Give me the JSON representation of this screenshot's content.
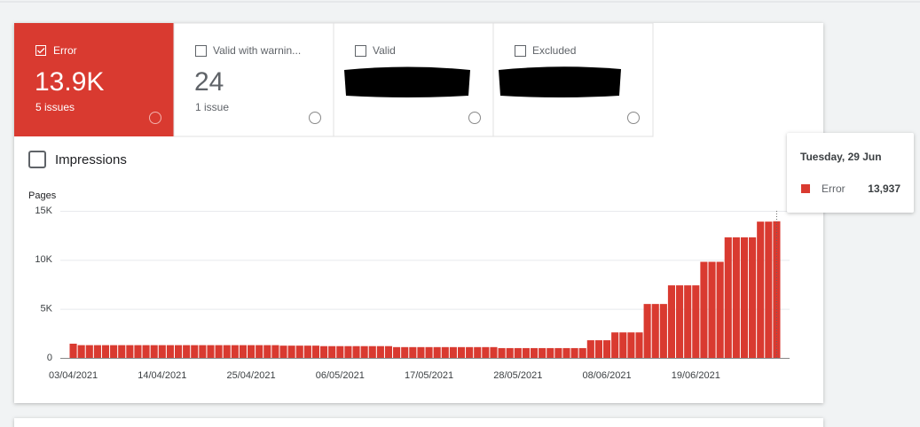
{
  "tabs": [
    {
      "label": "Error",
      "value": "13.9K",
      "sub": "5 issues"
    },
    {
      "label": "Valid with warnin...",
      "value": "24",
      "sub": "1 issue"
    },
    {
      "label": "Valid"
    },
    {
      "label": "Excluded"
    }
  ],
  "impressions": "Impressions",
  "tooltip": {
    "title": "Tuesday, 29 Jun",
    "series": "Error",
    "value": "13,937"
  },
  "chart_data": {
    "type": "bar",
    "y_label": "Pages",
    "color": "#d93a30",
    "grid": true,
    "ylim": [
      0,
      15000
    ],
    "yticks": [
      0,
      {
        "value": 5000,
        "label": "5K"
      },
      {
        "value": 10000,
        "label": "10K"
      },
      {
        "value": 15000,
        "label": "15K"
      }
    ],
    "categories": [
      "03/04/2021",
      null,
      null,
      null,
      null,
      null,
      null,
      null,
      null,
      null,
      null,
      "14/04/2021",
      null,
      null,
      null,
      null,
      null,
      null,
      null,
      null,
      null,
      null,
      "25/04/2021",
      null,
      null,
      null,
      null,
      null,
      null,
      null,
      null,
      null,
      null,
      "06/05/2021",
      null,
      null,
      null,
      null,
      null,
      null,
      null,
      null,
      null,
      null,
      "17/05/2021",
      null,
      null,
      null,
      null,
      null,
      null,
      null,
      null,
      null,
      null,
      "28/05/2021",
      null,
      null,
      null,
      null,
      null,
      null,
      null,
      null,
      null,
      null,
      "08/06/2021",
      null,
      null,
      null,
      null,
      null,
      null,
      null,
      null,
      null,
      null,
      "19/06/2021",
      null,
      null,
      null,
      null,
      null,
      null,
      null,
      null,
      null,
      null
    ],
    "values": [
      1450,
      1300,
      1300,
      1300,
      1300,
      1300,
      1300,
      1300,
      1300,
      1300,
      1300,
      1300,
      1300,
      1300,
      1300,
      1300,
      1300,
      1300,
      1300,
      1300,
      1300,
      1300,
      1300,
      1300,
      1300,
      1300,
      1250,
      1250,
      1250,
      1250,
      1250,
      1200,
      1200,
      1200,
      1200,
      1200,
      1200,
      1200,
      1200,
      1200,
      1100,
      1100,
      1100,
      1100,
      1100,
      1100,
      1100,
      1100,
      1100,
      1100,
      1100,
      1100,
      1100,
      1000,
      1000,
      1000,
      1000,
      1000,
      1000,
      1000,
      1000,
      1000,
      1000,
      1000,
      1800,
      1800,
      1800,
      2600,
      2600,
      2600,
      2600,
      5500,
      5500,
      5500,
      7400,
      7400,
      7400,
      7400,
      9800,
      9800,
      9800,
      12300,
      12300,
      12300,
      12300,
      13900,
      13900,
      13937
    ]
  }
}
